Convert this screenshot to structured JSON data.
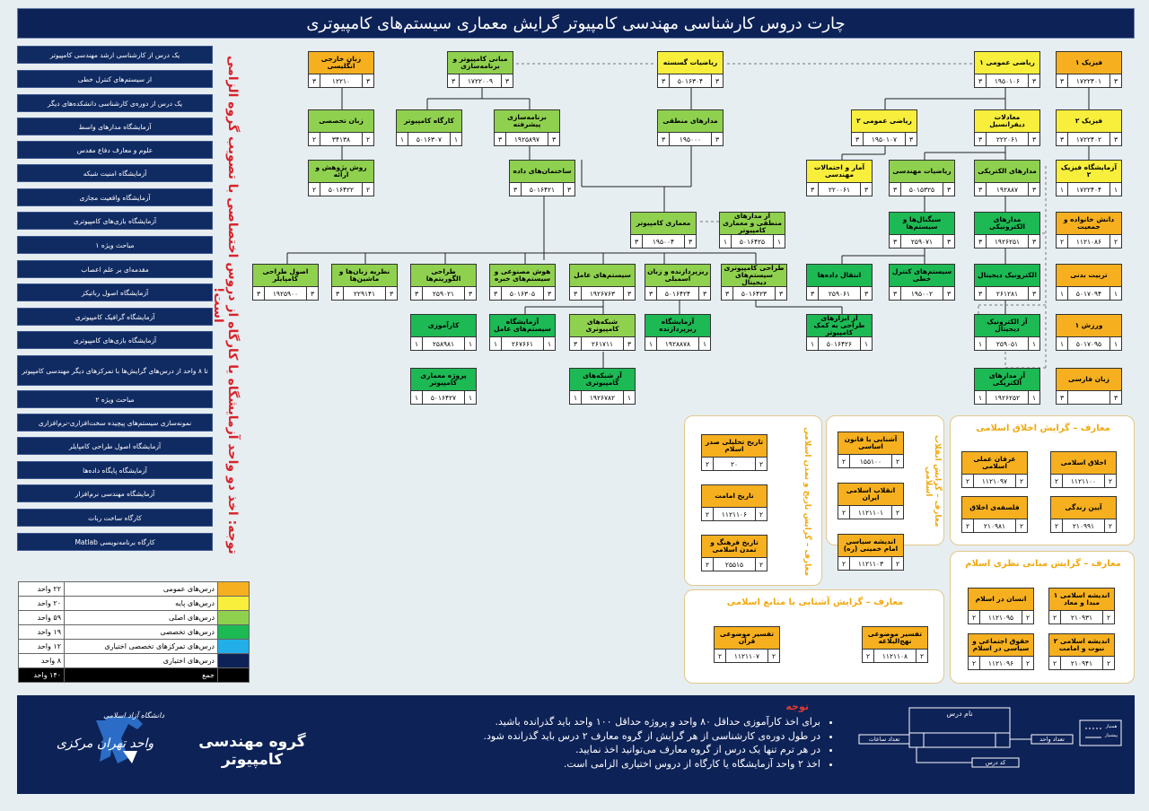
{
  "header": {
    "title": "چارت دروس کارشناسی مهندسی کامپیوتر گرایش معماری سیستم‌های کامپیوتری"
  },
  "electives": [
    "یک درس از کارشناسی ارشد مهندسی کامپیوتر",
    "از سیستم‌های کنترل خطی",
    "یک درس از دوره‌ی کارشناسی دانشکده‌های دیگر",
    "آزمایشگاه مدارهای واسط",
    "علوم و معارف دفاع مقدس",
    "آزمایشگاه امنیت شبکه",
    "آزمایشگاه واقعیت مجازی",
    "آزمایشگاه بازی‌های کامپیوتری",
    "مباحث ویژه ۱",
    "مقدمه‌ای بر علم اعصاب",
    "آزمایشگاه اصول رباتیکز",
    "آزمایشگاه گرافیک کامپیوتری",
    "آزمایشگاه بازی‌های کامپیوتری",
    "تا ۸ واحد از درس‌های گرایش‌ها با تمرکزهای دیگر مهندسی کامپیوتر",
    "مباحث ویژه ۲",
    "نمونه‌سازی سیستم‌های پیچیده سخت‌افزاری-نرم‌افزاری",
    "آزمایشگاه اصول طراحی کامپایلر",
    "آزمایشگاه پایگاه داده‌ها",
    "آزمایشگاه مهندسی نرم‌افزار",
    "کارگاه ساخت ربات",
    "کارگاه برنامه‌نویسی Matlab"
  ],
  "warning": "توجه: اخذ دو واحد آزمایشگاه یا کارگاه از دروس اختصاصی با تصویب گروه الزامی است!",
  "courses": [
    {
      "name": "فیزیک ۱",
      "code": "۱۷۲۲۴۰۱",
      "l": "۳",
      "r": "۳",
      "c": "or"
    },
    {
      "name": "ریاضی عمومی ۱",
      "code": "۱۹۵۰۱۰۶",
      "l": "۳",
      "r": "۳",
      "c": "ye"
    },
    {
      "name": "ریاضیات گسسته",
      "code": "۵۰۱۶۳۰۴",
      "l": "۳",
      "r": "۳",
      "c": "ye"
    },
    {
      "name": "مبانی کامپیوتر و برنامه‌سازی",
      "code": "۱۷۲۲۰۰۹",
      "l": "۳",
      "r": "۳",
      "c": "lg"
    },
    {
      "name": "زبان خارجی انگلیسی",
      "code": "۱۲۲۱۰",
      "l": "۳",
      "r": "۳",
      "c": "or"
    },
    {
      "name": "فیزیک ۲",
      "code": "۱۷۲۲۴۰۲",
      "l": "۳",
      "r": "۳",
      "c": "ye"
    },
    {
      "name": "معادلات دیفرانسیل",
      "code": "۲۲۲۰۶۱",
      "l": "۳",
      "r": "۳",
      "c": "ye"
    },
    {
      "name": "ریاضی عمومی ۲",
      "code": "۱۹۵۰۱۰۷",
      "l": "۳",
      "r": "۳",
      "c": "ye"
    },
    {
      "name": "مدارهای منطقی",
      "code": "۱۹۵۰۰۰",
      "l": "۳",
      "r": "۳",
      "c": "lg"
    },
    {
      "name": "برنامه‌سازی پیشرفته",
      "code": "۱۹۲۵۸۹۷",
      "l": "۳",
      "r": "۳",
      "c": "lg"
    },
    {
      "name": "کارگاه کامپیوتر",
      "code": "۵۰۱۶۳۰۷",
      "l": "۱",
      "r": "۱",
      "c": "lg"
    },
    {
      "name": "زبان تخصصی",
      "code": "۳۴۱۳۸",
      "l": "۲",
      "r": "۲",
      "c": "lg"
    },
    {
      "name": "آزمایشگاه فیزیک ۲",
      "code": "۱۷۲۲۴۰۴",
      "l": "۱",
      "r": "۱",
      "c": "ye"
    },
    {
      "name": "مدارهای الکتریکی",
      "code": "۱۹۲۸۸۷",
      "l": "۳",
      "r": "۳",
      "c": "lg"
    },
    {
      "name": "ریاضیات مهندسی",
      "code": "۵۰۱۵۳۲۵",
      "l": "۳",
      "r": "۳",
      "c": "lg"
    },
    {
      "name": "آمار و احتمالات مهندسی",
      "code": "۲۲۰۰۶۱",
      "l": "۳",
      "r": "۳",
      "c": "ye"
    },
    {
      "name": "ساختمان‌های داده",
      "code": "۵۰۱۶۴۲۱",
      "l": "۳",
      "r": "۳",
      "c": "lg"
    },
    {
      "name": "روش پژوهش و ارائه",
      "code": "۵۰۱۶۴۲۲",
      "l": "۲",
      "r": "۲",
      "c": "lg"
    },
    {
      "name": "دانش خانواده و جمعیت",
      "code": "۱۱۲۱۰۸۶",
      "l": "۲",
      "r": "۲",
      "c": "or"
    },
    {
      "name": "مدارهای الکترونیکی",
      "code": "۱۹۲۶۲۵۱",
      "l": "۳",
      "r": "۳",
      "c": "dg"
    },
    {
      "name": "سیگنال‌ها و سیستم‌ها",
      "code": "۲۵۹۰۷۱",
      "l": "۳",
      "r": "۳",
      "c": "dg"
    },
    {
      "name": "معماری کامپیوتر",
      "code": "۱۹۵۰۰۴",
      "l": "۳",
      "r": "۳",
      "c": "lg"
    },
    {
      "name": "آز مدارهای منطقی و معماری کامپیوتر",
      "code": "۵۰۱۶۴۲۵",
      "l": "۱",
      "r": "۱",
      "c": "lg"
    },
    {
      "name": "تربیت بدنی",
      "code": "۵۰۱۷۰۹۴",
      "l": "۱",
      "r": "۱",
      "c": "or"
    },
    {
      "name": "الکترونیک دیجیتال",
      "code": "۲۶۱۲۸۱",
      "l": "۳",
      "r": "۳",
      "c": "dg"
    },
    {
      "name": "سیستم‌های کنترل خطی",
      "code": "۱۹۵۰۰۲",
      "l": "۳",
      "r": "۳",
      "c": "dg"
    },
    {
      "name": "انتقال داده‌ها",
      "code": "۲۵۹۰۶۱",
      "l": "۳",
      "r": "۳",
      "c": "dg"
    },
    {
      "name": "طراحی کامپیوتری سیستم‌های دیجیتال",
      "code": "۵۰۱۶۴۲۳",
      "l": "۳",
      "r": "۳",
      "c": "lg"
    },
    {
      "name": "ریزپردازنده و زبان اسمبلی",
      "code": "۵۰۱۶۴۲۴",
      "l": "۳",
      "r": "۳",
      "c": "lg"
    },
    {
      "name": "سیستم‌های عامل",
      "code": "۱۹۲۶۷۶۳",
      "l": "۳",
      "r": "۳",
      "c": "lg"
    },
    {
      "name": "هوش مصنوعی و سیستم‌های خبره",
      "code": "۵۰۱۶۳۰۵",
      "l": "۳",
      "r": "۳",
      "c": "lg"
    },
    {
      "name": "طراحی الگوریتم‌ها",
      "code": "۲۵۹۰۲۱",
      "l": "۳",
      "r": "۳",
      "c": "lg"
    },
    {
      "name": "نظریه زبان‌ها و ماشین‌ها",
      "code": "۲۲۹۱۴۱",
      "l": "۳",
      "r": "۳",
      "c": "lg"
    },
    {
      "name": "اصول طراحی کامپایلر",
      "code": "۱۹۲۵۹۰۰",
      "l": "۳",
      "r": "۳",
      "c": "lg"
    },
    {
      "name": "ورزش ۱",
      "code": "۵۰۱۷۰۹۵",
      "l": "۱",
      "r": "۱",
      "c": "or"
    },
    {
      "name": "آز الکترونیک دیجیتال",
      "code": "۲۵۹۰۵۱",
      "l": "۱",
      "r": "۱",
      "c": "dg"
    },
    {
      "name": "آز ابزارهای طراحی به کمک کامپیوتر",
      "code": "۵۰۱۶۴۲۶",
      "l": "۱",
      "r": "۱",
      "c": "dg"
    },
    {
      "name": "آزمایشگاه ریزپردازنده",
      "code": "۱۹۲۸۸۷۸",
      "l": "۱",
      "r": "۱",
      "c": "dg"
    },
    {
      "name": "شبکه‌های کامپیوتری",
      "code": "۲۶۱۷۱۱",
      "l": "۳",
      "r": "۳",
      "c": "lg"
    },
    {
      "name": "آزمایشگاه سیستم‌های عامل",
      "code": "۲۶۷۶۶۱",
      "l": "۱",
      "r": "۱",
      "c": "dg"
    },
    {
      "name": "کارآموزی",
      "code": "۲۵۸۹۸۱",
      "l": "۱",
      "r": "۱",
      "c": "dg"
    },
    {
      "name": "زبان فارسی",
      "code": "",
      "l": "۳",
      "r": "۳",
      "c": "or"
    },
    {
      "name": "آز مدارهای الکتریکی",
      "code": "۱۹۲۶۲۵۲",
      "l": "۱",
      "r": "۱",
      "c": "dg"
    },
    {
      "name": "آز شبکه‌های کامپیوتری",
      "code": "۱۹۲۶۷۸۲",
      "l": "۱",
      "r": "۱",
      "c": "dg"
    },
    {
      "name": "پروژه معماری کامپیوتر",
      "code": "۵۰۱۶۴۲۷",
      "l": "۱",
      "r": "۱",
      "c": "dg"
    }
  ],
  "maaref": {
    "akhlagh": {
      "title": "معارف – گرایش اخلاق اسلامی",
      "items": [
        {
          "name": "اخلاق اسلامی",
          "code": "۱۱۲۱۱۰۰",
          "l": "۲",
          "r": "۲"
        },
        {
          "name": "عرفان عملی اسلامی",
          "code": "۱۱۲۱۰۹۷",
          "l": "۲",
          "r": "۲"
        },
        {
          "name": "آیین زندگی",
          "code": "۲۱۰۹۹۱",
          "l": "۲",
          "r": "۲"
        },
        {
          "name": "فلسفه‌ی اخلاق",
          "code": "۲۱۰۹۸۱",
          "l": "۲",
          "r": "۲"
        }
      ]
    },
    "enghelab": {
      "title": "معارف – گرایش انقلاب اسلامی",
      "items": [
        {
          "name": "آشنایی با قانون اساسی",
          "code": "۱۵۵۱۰۰",
          "l": "۲",
          "r": "۲"
        },
        {
          "name": "انقلاب اسلامی ایران",
          "code": "۱۱۲۱۱۰۱",
          "l": "۲",
          "r": "۲"
        },
        {
          "name": "اندیشه سیاسی امام خمینی (ره)",
          "code": "۱۱۲۱۱۰۳",
          "l": "۲",
          "r": "۲"
        }
      ]
    },
    "tarikh": {
      "title": "معارف – گرایش تاریخ و تمدن اسلامی",
      "items": [
        {
          "name": "تاریخ تحلیلی صدر اسلام",
          "code": "۲۰",
          "l": "۲",
          "r": "۲"
        },
        {
          "name": "تاریخ امامت",
          "code": "۱۱۲۱۱۰۶",
          "l": "۲",
          "r": "۲"
        },
        {
          "name": "تاریخ فرهنگ و تمدن اسلامی",
          "code": "۲۵۵۱۵",
          "l": "۲",
          "r": "۲"
        }
      ]
    },
    "mabani": {
      "title": "معارف – گرایش مبانی نظری اسلام",
      "items": [
        {
          "name": "اندیشه اسلامی ۱ مبدا و معاد",
          "code": "۲۱۰۹۳۱",
          "l": "۲",
          "r": "۲"
        },
        {
          "name": "انسان در اسلام",
          "code": "۱۱۲۱۰۹۵",
          "l": "۲",
          "r": "۲"
        },
        {
          "name": "اندیشه اسلامی ۲ نبوت و امامت",
          "code": "۲۱۰۹۴۱",
          "l": "۲",
          "r": "۲"
        },
        {
          "name": "حقوق اجتماعی و سیاسی در اسلام",
          "code": "۱۱۲۱۰۹۶",
          "l": "۲",
          "r": "۲"
        }
      ]
    },
    "manabe": {
      "title": "معارف – گرایش آشنایی با منابع اسلامی",
      "items": [
        {
          "name": "تفسیر موضوعی نهج‌البلاغه",
          "code": "۱۱۲۱۱۰۸",
          "l": "۲",
          "r": "۲"
        },
        {
          "name": "تفسیر موضوعی قرآن",
          "code": "۱۱۲۱۱۰۷",
          "l": "۲",
          "r": "۲"
        }
      ]
    }
  },
  "legend": [
    {
      "label": "درس‌های عمومی",
      "value": "۲۲ واحد",
      "color": "#f6b01f"
    },
    {
      "label": "درس‌های پایه",
      "value": "۲۰ واحد",
      "color": "#f7ef3b"
    },
    {
      "label": "درس‌های اصلی",
      "value": "۵۹ واحد",
      "color": "#8fd14f"
    },
    {
      "label": "درس‌های تخصصی",
      "value": "۱۹ واحد",
      "color": "#1db954"
    },
    {
      "label": "درس‌های تمرکزهای تخصصی اختیاری",
      "value": "۱۲ واحد",
      "color": "#22aee8"
    },
    {
      "label": "درس‌های اختیاری",
      "value": "۸ واحد",
      "color": "#0d2257"
    },
    {
      "label": "جمع",
      "value": "۱۴۰ واحد",
      "color": "#000000"
    }
  ],
  "footer": {
    "notes_title": "توجه",
    "notes": [
      "برای اخذ کارآموزی حداقل ۸۰ واحد و پروژه حداقل ۱۰۰ واحد باید گذرانده باشید.",
      "در طول دوره‌ی کارشناسی از هر گرایش از گروه معارف ۲ درس باید گذرانده شود.",
      "در هر ترم تنها یک درس از گروه معارف می‌توانید اخذ نمایید.",
      "اخذ ۲ واحد آزمایشگاه یا کارگاه از دروس اختیاری الزامی است."
    ],
    "department": "گروه مهندسی کامپیوتر",
    "university_line1": "دانشگاه آزاد اسلامی",
    "university_line2": "واحد تهران مرکزی",
    "key_course_name": "نام درس",
    "key_units": "تعداد واحد",
    "key_hours": "تعداد ساعات",
    "key_code": "کد درس",
    "key_line1": "همنیاز",
    "key_line2": "پیشنیاز"
  }
}
